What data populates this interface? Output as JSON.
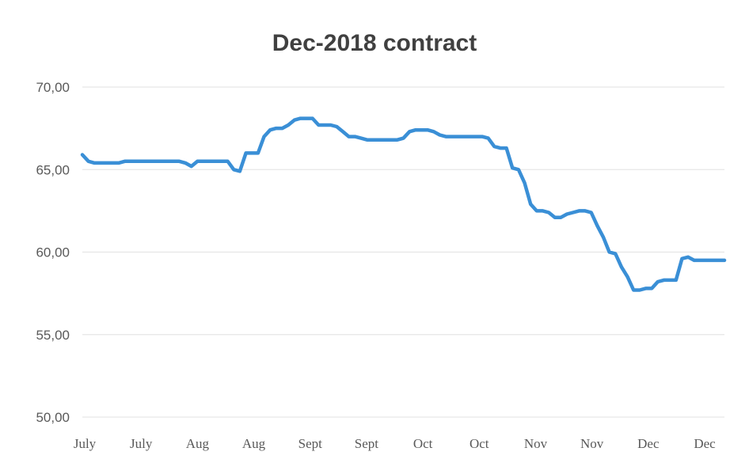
{
  "chart_data": {
    "type": "line",
    "title": "Dec-2018 contract",
    "xlabel": "",
    "ylabel": "",
    "ylim": [
      50,
      70
    ],
    "yticks": [
      50,
      55,
      60,
      65,
      70
    ],
    "ytick_labels": [
      "50,00",
      "55,00",
      "60,00",
      "65,00",
      "70,00"
    ],
    "x_tick_labels": [
      "July",
      "July",
      "Aug",
      "Aug",
      "Sept",
      "Sept",
      "Oct",
      "Oct",
      "Nov",
      "Nov",
      "Dec",
      "Dec"
    ],
    "grid": true,
    "legend": "none",
    "line_color": "#3a8fd6",
    "series": [
      {
        "values": [
          65.9,
          65.5,
          65.4,
          65.4,
          65.4,
          65.4,
          65.4,
          65.5,
          65.5,
          65.5,
          65.5,
          65.5,
          65.5,
          65.5,
          65.5,
          65.5,
          65.5,
          65.4,
          65.2,
          65.5,
          65.5,
          65.5,
          65.5,
          65.5,
          65.5,
          65.0,
          64.9,
          66.0,
          66.0,
          66.0,
          67.0,
          67.4,
          67.5,
          67.5,
          67.7,
          68.0,
          68.1,
          68.1,
          68.1,
          67.7,
          67.7,
          67.7,
          67.6,
          67.3,
          67.0,
          67.0,
          66.9,
          66.8,
          66.8,
          66.8,
          66.8,
          66.8,
          66.8,
          66.9,
          67.3,
          67.4,
          67.4,
          67.4,
          67.3,
          67.1,
          67.0,
          67.0,
          67.0,
          67.0,
          67.0,
          67.0,
          67.0,
          66.9,
          66.4,
          66.3,
          66.3,
          65.1,
          65.0,
          64.2,
          62.9,
          62.5,
          62.5,
          62.4,
          62.1,
          62.1,
          62.3,
          62.4,
          62.5,
          62.5,
          62.4,
          61.6,
          60.9,
          60.0,
          59.9,
          59.1,
          58.5,
          57.7,
          57.7,
          57.8,
          57.8,
          58.2,
          58.3,
          58.3,
          58.3,
          59.6,
          59.7,
          59.5,
          59.5,
          59.5,
          59.5,
          59.5,
          59.5
        ]
      }
    ]
  }
}
